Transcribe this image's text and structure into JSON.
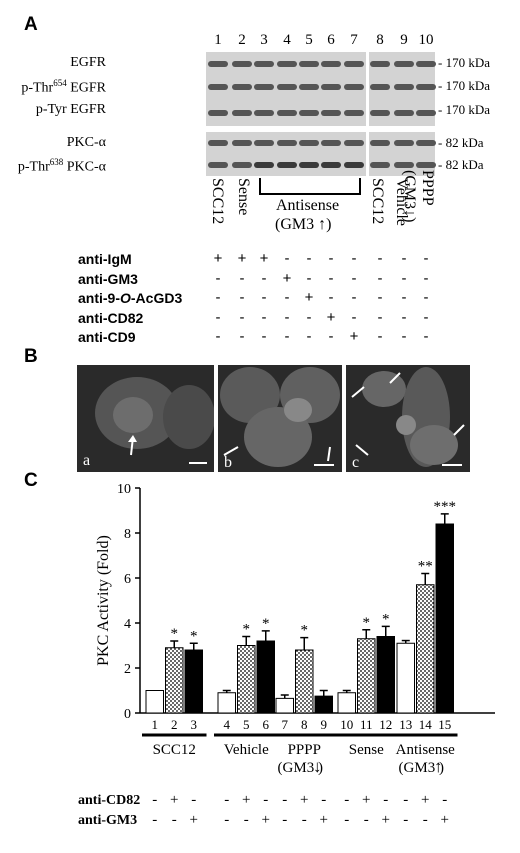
{
  "panels": {
    "a": "A",
    "b": "B",
    "c": "C"
  },
  "panelA": {
    "lanes": [
      "1",
      "2",
      "3",
      "4",
      "5",
      "6",
      "7",
      "8",
      "9",
      "10"
    ],
    "blots": [
      {
        "label": "EGFR",
        "kda": "170 kDa"
      },
      {
        "label": "p-Thr654 EGFR",
        "kda": "170 kDa"
      },
      {
        "label": "p-Tyr EGFR",
        "kda": "170 kDa"
      },
      {
        "label": "PKC-α",
        "kda": "82 kDa"
      },
      {
        "label": "p-Thr638 PKC-α",
        "kda": "82 kDa"
      }
    ],
    "groups": {
      "scc12": "SCC12",
      "sense": "Sense",
      "antisense": "Antisense",
      "antisense_sub": "(GM3",
      "scc12b": "SCC12",
      "vehicle": "Vehicle",
      "pppp": "PPPP",
      "pppp_sub": "(GM3"
    },
    "treatments": [
      {
        "label": "anti-IgM",
        "signs": [
          "+",
          "+",
          "+",
          "-",
          "-",
          "-",
          "-",
          "-",
          "-",
          "-"
        ]
      },
      {
        "label": "anti-GM3",
        "signs": [
          "-",
          "-",
          "-",
          "+",
          "-",
          "-",
          "-",
          "-",
          "-",
          "-"
        ]
      },
      {
        "label": "anti-9-O-AcGD3",
        "signs": [
          "-",
          "-",
          "-",
          "-",
          "+",
          "-",
          "-",
          "-",
          "-",
          "-"
        ]
      },
      {
        "label": "anti-CD82",
        "signs": [
          "-",
          "-",
          "-",
          "-",
          "-",
          "+",
          "-",
          "-",
          "-",
          "-"
        ]
      },
      {
        "label": "anti-CD9",
        "signs": [
          "-",
          "-",
          "-",
          "-",
          "-",
          "-",
          "+",
          "-",
          "-",
          "-"
        ]
      }
    ]
  },
  "panelB": {
    "images": [
      "a",
      "b",
      "c"
    ]
  },
  "chart_data": {
    "type": "bar",
    "ylabel": "PKC Activity (Fold)",
    "ylim": [
      0,
      10
    ],
    "yticks": [
      "0",
      "2",
      "4",
      "6",
      "8",
      "10"
    ],
    "bar_numbers": [
      "1",
      "2",
      "3",
      "4",
      "5",
      "6",
      "7",
      "8",
      "9",
      "10",
      "11",
      "12",
      "13",
      "14",
      "15"
    ],
    "groups": [
      "SCC12",
      "Vehicle",
      "PPPP",
      "Sense",
      "Antisense"
    ],
    "group_subs": [
      "",
      "",
      "(GM3",
      "",
      "(GM3"
    ],
    "series": [
      {
        "fill": "white",
        "values": [
          1.0,
          0.9,
          0.65,
          0.9,
          3.1
        ],
        "errors": [
          0,
          0.1,
          0.15,
          0.1,
          0.12
        ],
        "annotations": [
          "",
          "",
          "",
          "",
          ""
        ]
      },
      {
        "fill": "pattern",
        "values": [
          2.9,
          3.0,
          2.8,
          3.3,
          5.7
        ],
        "errors": [
          0.3,
          0.4,
          0.55,
          0.4,
          0.5
        ],
        "annotations": [
          "*",
          "*",
          "*",
          "*",
          "**"
        ]
      },
      {
        "fill": "black",
        "values": [
          2.8,
          3.2,
          0.75,
          3.4,
          8.4
        ],
        "errors": [
          0.3,
          0.45,
          0.25,
          0.45,
          0.45
        ],
        "annotations": [
          "*",
          "*",
          "",
          "*",
          "***"
        ]
      }
    ],
    "treatments": [
      {
        "label": "anti-CD82",
        "signs": [
          "-",
          "+",
          "-",
          "-",
          "+",
          "-",
          "-",
          "+",
          "-",
          "-",
          "+",
          "-",
          "-",
          "+",
          "-"
        ]
      },
      {
        "label": "anti-GM3",
        "signs": [
          "-",
          "-",
          "+",
          "-",
          "-",
          "+",
          "-",
          "-",
          "+",
          "-",
          "-",
          "+",
          "-",
          "-",
          "+"
        ]
      }
    ]
  }
}
